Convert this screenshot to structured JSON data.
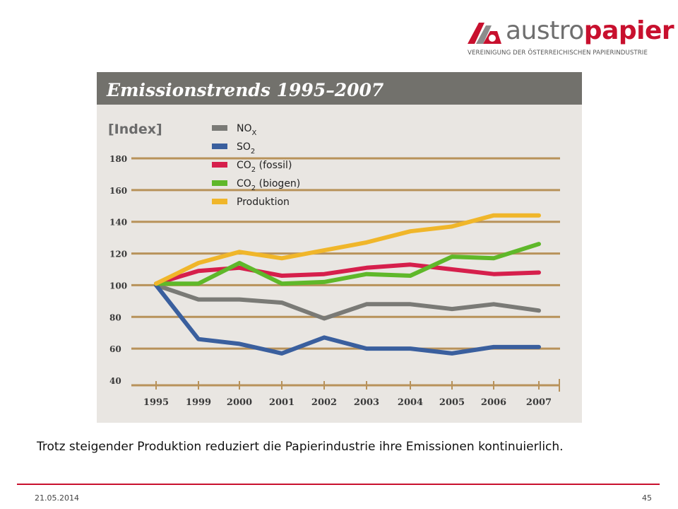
{
  "brand": {
    "name_part1": "austro",
    "name_part2": "papier",
    "subtitle": "VEREINIGUNG DER ÖSTERREICHISCHEN PAPIERINDUSTRIE"
  },
  "colors": {
    "accent": "#c8102e",
    "panel_bg": "#e9e6e2",
    "title_bar": "#72716c",
    "gridline": "#b8925a"
  },
  "chart_data": {
    "type": "line",
    "title": "Emissionstrends 1995–2007",
    "ylabel": "[Index]",
    "x": [
      "1995",
      "1999",
      "2000",
      "2001",
      "2002",
      "2003",
      "2004",
      "2005",
      "2006",
      "2007"
    ],
    "yticks": [
      40,
      60,
      80,
      100,
      120,
      140,
      160,
      180
    ],
    "ylim": [
      40,
      180
    ],
    "grid": true,
    "legend_position": "top-left",
    "series": [
      {
        "name": "NO",
        "sub": "X",
        "color": "#7a7a76",
        "values": [
          100,
          91,
          91,
          89,
          79,
          88,
          88,
          85,
          88,
          84
        ]
      },
      {
        "name": "SO",
        "sub": "2",
        "suffix": "",
        "color": "#3a5f9e",
        "values": [
          100,
          66,
          63,
          57,
          67,
          60,
          60,
          57,
          61,
          61
        ]
      },
      {
        "name": "CO",
        "sub": "2",
        "suffix": " (fossil)",
        "color": "#d61f4c",
        "values": [
          101,
          109,
          111,
          106,
          107,
          111,
          113,
          110,
          107,
          108
        ]
      },
      {
        "name": "CO",
        "sub": "2",
        "suffix": " (biogen)",
        "color": "#5fb82a",
        "values": [
          101,
          101,
          114,
          101,
          102,
          107,
          106,
          118,
          117,
          126
        ]
      },
      {
        "name": "Produktion",
        "sub": "",
        "suffix": "",
        "color": "#f0b62a",
        "values": [
          101,
          114,
          121,
          117,
          122,
          127,
          134,
          137,
          144,
          144
        ]
      }
    ]
  },
  "caption": "Trotz steigender Produktion reduziert die Papierindustrie ihre Emissionen kontinuierlich.",
  "footer": {
    "date": "21.05.2014",
    "page": "45"
  }
}
